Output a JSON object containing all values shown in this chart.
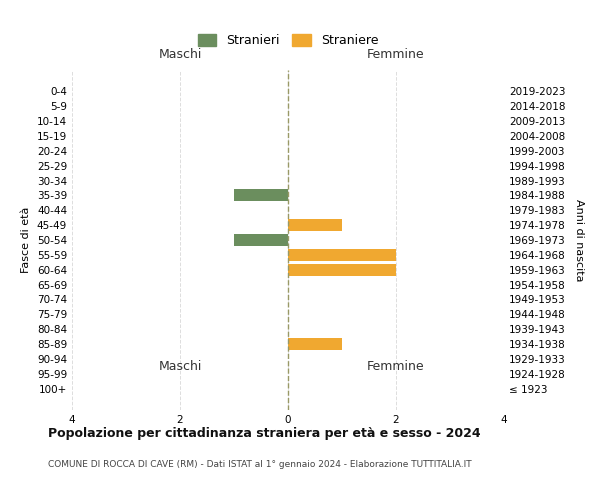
{
  "age_groups": [
    "100+",
    "95-99",
    "90-94",
    "85-89",
    "80-84",
    "75-79",
    "70-74",
    "65-69",
    "60-64",
    "55-59",
    "50-54",
    "45-49",
    "40-44",
    "35-39",
    "30-34",
    "25-29",
    "20-24",
    "15-19",
    "10-14",
    "5-9",
    "0-4"
  ],
  "birth_years": [
    "≤ 1923",
    "1924-1928",
    "1929-1933",
    "1934-1938",
    "1939-1943",
    "1944-1948",
    "1949-1953",
    "1954-1958",
    "1959-1963",
    "1964-1968",
    "1969-1973",
    "1974-1978",
    "1979-1983",
    "1984-1988",
    "1989-1993",
    "1994-1998",
    "1999-2003",
    "2004-2008",
    "2009-2013",
    "2014-2018",
    "2019-2023"
  ],
  "maschi": [
    0,
    0,
    0,
    0,
    0,
    0,
    0,
    0,
    0,
    0,
    -1,
    0,
    0,
    -1,
    0,
    0,
    0,
    0,
    0,
    0,
    0
  ],
  "femmine": [
    0,
    0,
    0,
    1,
    0,
    0,
    0,
    0,
    2,
    2,
    0,
    1,
    0,
    0,
    0,
    0,
    0,
    0,
    0,
    0,
    0
  ],
  "color_maschi": "#6b8e5e",
  "color_femmine": "#f0a830",
  "xlim": [
    -4,
    4
  ],
  "xticks": [
    -4,
    -2,
    0,
    2,
    4
  ],
  "xticklabels": [
    "4",
    "2",
    "0",
    "2",
    "4"
  ],
  "ylabel_left": "Fasce di età",
  "ylabel_right": "Anni di nascita",
  "header_maschi": "Maschi",
  "header_femmine": "Femmine",
  "legend_maschi": "Stranieri",
  "legend_femmine": "Straniere",
  "title": "Popolazione per cittadinanza straniera per età e sesso - 2024",
  "subtitle": "COMUNE DI ROCCA DI CAVE (RM) - Dati ISTAT al 1° gennaio 2024 - Elaborazione TUTTITALIA.IT",
  "bg_color": "#ffffff",
  "grid_color": "#dddddd",
  "bar_height": 0.8,
  "title_fontsize": 9,
  "subtitle_fontsize": 6.5,
  "tick_fontsize": 7.5,
  "header_fontsize": 9
}
